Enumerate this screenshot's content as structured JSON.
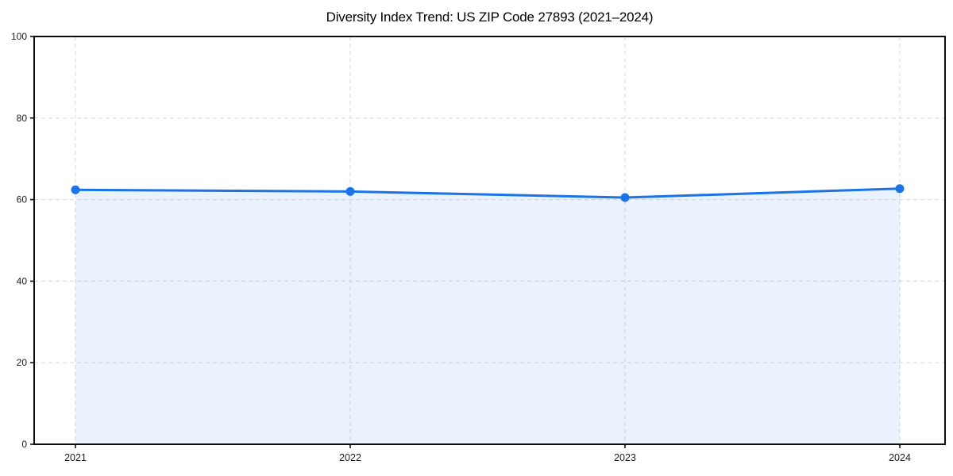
{
  "chart_data": {
    "type": "line",
    "title": "Diversity Index Trend: US ZIP Code 27893 (2021–2024)",
    "x": [
      "2021",
      "2022",
      "2023",
      "2024"
    ],
    "series": [
      {
        "name": "Diversity Index",
        "values": [
          62.4,
          62.0,
          60.5,
          62.7
        ]
      }
    ],
    "xlabel": "",
    "ylabel": "",
    "ylim": [
      0,
      100
    ],
    "yticks": [
      0,
      20,
      40,
      60,
      80,
      100
    ],
    "grid": "dashed-both-axes",
    "legend": "none",
    "area_fill": true,
    "colors": {
      "line": "#1a73e8",
      "marker": "#1a73e8",
      "area": "rgba(26,115,232,0.09)",
      "grid": "#dedede",
      "spine": "#0d0d0d",
      "tick_label": "#1a1a1a",
      "title": "#000000"
    }
  }
}
